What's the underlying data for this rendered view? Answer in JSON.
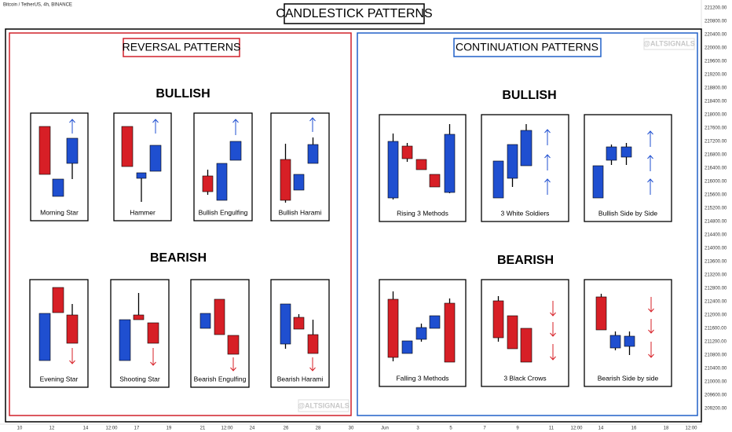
{
  "header": {
    "symbol": "Bitcoin / TetherUS, 4h, BINANCE"
  },
  "title": "CANDLESTICK PATTERNS",
  "panels": [
    {
      "title": "REVERSAL PATTERNS",
      "watermark": "@ALTSIGNALS",
      "groups": [
        {
          "heading": "BULLISH",
          "patterns": [
            "Morning Star",
            "Hammer",
            "Bullish Engulfing",
            "Bullish Harami"
          ]
        },
        {
          "heading": "BEARISH",
          "patterns": [
            "Evening Star",
            "Shooting Star",
            "Bearish Engulfing",
            "Bearish Harami"
          ]
        }
      ]
    },
    {
      "title": "CONTINUATION PATTERNS",
      "watermark": "@ALTSIGNALS",
      "groups": [
        {
          "heading": "BULLISH",
          "patterns": [
            "Rising 3 Methods",
            "3 White Soldiers",
            "Bullish Side by Side"
          ]
        },
        {
          "heading": "BEARISH",
          "patterns": [
            "Falling 3 Methods",
            "3 Black Crows",
            "Bearish Side by side"
          ]
        }
      ]
    }
  ],
  "price_axis": [
    "221200.00",
    "220800.00",
    "220400.00",
    "220000.00",
    "219600.00",
    "219200.00",
    "218800.00",
    "218400.00",
    "218000.00",
    "217600.00",
    "217200.00",
    "216800.00",
    "216400.00",
    "216000.00",
    "215600.00",
    "215200.00",
    "214800.00",
    "214400.00",
    "214000.00",
    "213600.00",
    "213200.00",
    "212800.00",
    "212400.00",
    "212000.00",
    "211600.00",
    "211200.00",
    "210800.00",
    "210400.00",
    "210000.00",
    "209600.00",
    "209200.00"
  ],
  "time_axis": [
    "10",
    "12",
    "14",
    "12:00",
    "17",
    "19",
    "21",
    "12:00",
    "24",
    "26",
    "28",
    "30",
    "Jun",
    "3",
    "5",
    "7",
    "9",
    "11",
    "12:00",
    "14",
    "16",
    "18",
    "12:00"
  ]
}
